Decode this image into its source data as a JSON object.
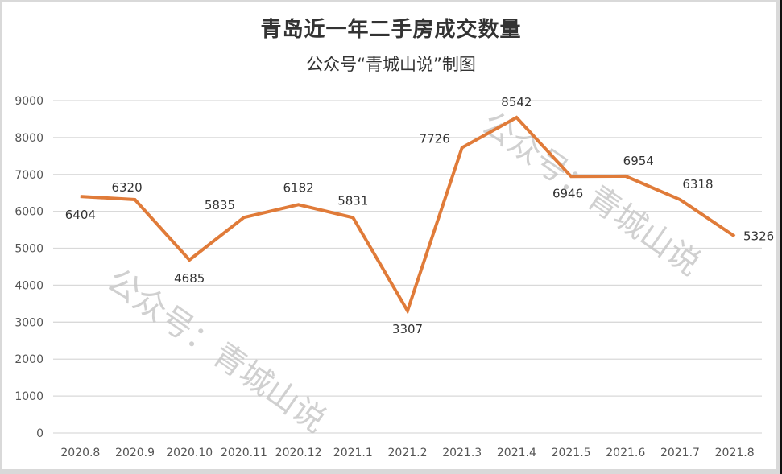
{
  "chart_data": {
    "type": "line",
    "title": "青岛近一年二手房成交数量",
    "subtitle": "公众号“青城山说”制图",
    "xlabel": "",
    "ylabel": "",
    "ylim": [
      0,
      9000
    ],
    "yticks": [
      0,
      1000,
      2000,
      3000,
      4000,
      5000,
      6000,
      7000,
      8000,
      9000
    ],
    "grid": true,
    "legend": "none",
    "categories": [
      "2020.8",
      "2020.9",
      "2020.10",
      "2020.11",
      "2020.12",
      "2021.1",
      "2021.2",
      "2021.3",
      "2021.4",
      "2021.5",
      "2021.6",
      "2021.7",
      "2021.8"
    ],
    "series": [
      {
        "name": "二手房成交数量",
        "color": "#e07b39",
        "values": [
          6404,
          6320,
          4685,
          5835,
          6182,
          5831,
          3307,
          7726,
          8542,
          6946,
          6954,
          6318,
          5326
        ]
      }
    ],
    "watermarks": [
      "公众号：青城山说",
      "公众号：青城山说"
    ]
  },
  "colors": {
    "line": "#e07b39",
    "grid": "#d9d9d9",
    "text": "#333333"
  }
}
